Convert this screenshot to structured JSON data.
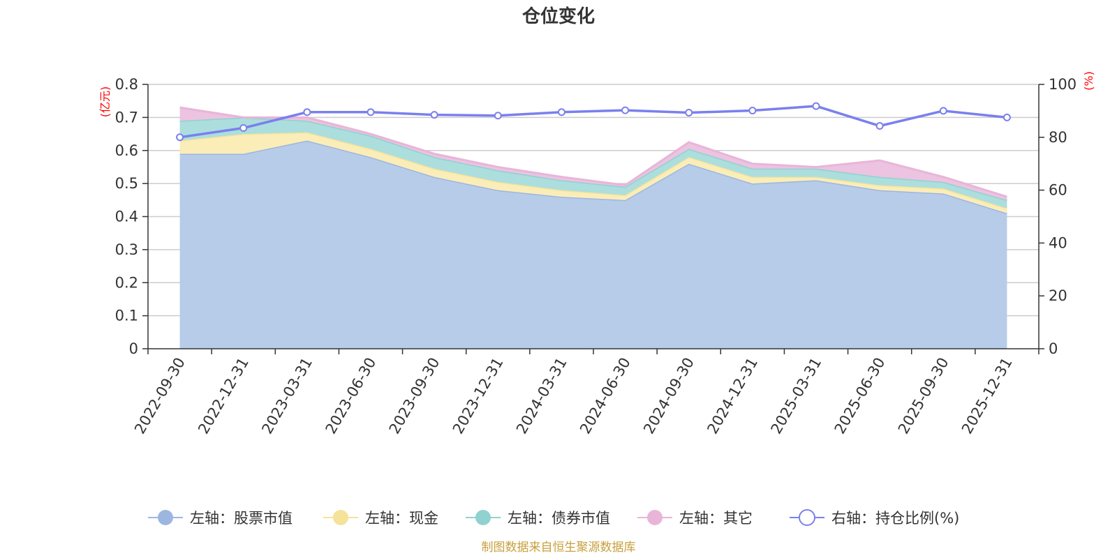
{
  "chart_data": {
    "type": "area",
    "title": "仓位变化",
    "left_unit": "(亿元)",
    "right_unit": "(%)",
    "categories": [
      "2022-09-30",
      "2022-12-31",
      "2023-03-31",
      "2023-06-30",
      "2023-09-30",
      "2023-12-31",
      "2024-03-31",
      "2024-06-30",
      "2024-09-30",
      "2024-12-31",
      "2025-03-31",
      "2025-06-30",
      "2025-09-30",
      "2025-12-31"
    ],
    "left_axis": {
      "min": 0,
      "max": 0.8,
      "ticks": [
        "0",
        "0.1",
        "0.2",
        "0.3",
        "0.4",
        "0.5",
        "0.6",
        "0.7",
        "0.8"
      ]
    },
    "right_axis": {
      "min": 0,
      "max": 100,
      "ticks": [
        "0",
        "20",
        "40",
        "60",
        "80",
        "100"
      ]
    },
    "stacked_series": [
      {
        "name": "左轴：股票市值",
        "color": "#9db6e0",
        "fill": "#b7cce9",
        "values": [
          0.59,
          0.59,
          0.63,
          0.58,
          0.52,
          0.48,
          0.46,
          0.45,
          0.56,
          0.5,
          0.51,
          0.48,
          0.47,
          0.41
        ]
      },
      {
        "name": "左轴：现金",
        "color": "#f5e39a",
        "fill": "#fbedb8",
        "values": [
          0.04,
          0.06,
          0.025,
          0.025,
          0.025,
          0.025,
          0.02,
          0.015,
          0.02,
          0.02,
          0.01,
          0.015,
          0.015,
          0.015
        ]
      },
      {
        "name": "左轴：债券市值",
        "color": "#8fd2d0",
        "fill": "#acdedd",
        "values": [
          0.06,
          0.05,
          0.035,
          0.04,
          0.035,
          0.035,
          0.03,
          0.025,
          0.025,
          0.025,
          0.025,
          0.025,
          0.02,
          0.025
        ]
      },
      {
        "name": "左轴：其它",
        "color": "#e8b5d8",
        "fill": "#ecc3e0",
        "values": [
          0.04,
          0.0,
          0.01,
          0.005,
          0.01,
          0.01,
          0.01,
          0.005,
          0.02,
          0.015,
          0.005,
          0.05,
          0.015,
          0.01
        ]
      }
    ],
    "line_series": {
      "name": "右轴：持仓比例(%)",
      "color": "#7a80ee",
      "values": [
        80,
        83.5,
        89.5,
        89.5,
        88.5,
        88.2,
        89.5,
        90.2,
        89.3,
        90.1,
        91.8,
        84.3,
        90,
        87.5
      ]
    },
    "source": "制图数据来自恒生聚源数据库"
  }
}
